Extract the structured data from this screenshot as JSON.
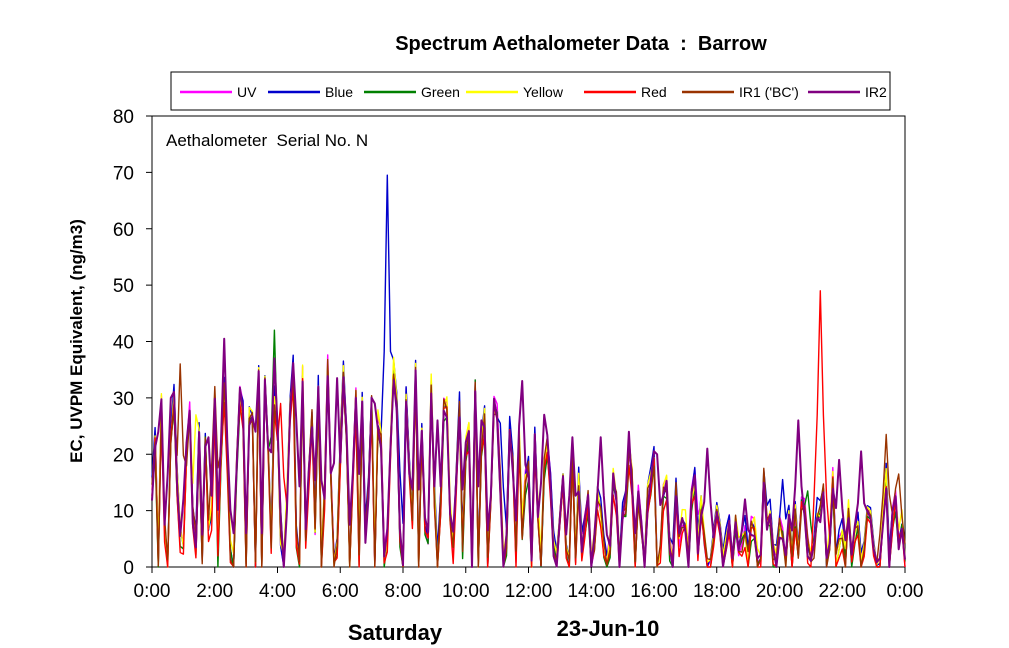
{
  "chart_data": {
    "type": "line",
    "title": "Spectrum Aethalometer Data  :  Barrow",
    "annotation": "Aethalometer  Serial No. N",
    "ylabel": "EC, UVPM Equivalent, (ng/m3)",
    "day_label": "Saturday",
    "date_label": "23-Jun-10",
    "ylim": [
      0,
      80
    ],
    "y_ticks": [
      "0",
      "10",
      "20",
      "30",
      "40",
      "50",
      "60",
      "70",
      "80"
    ],
    "x_range_hours": [
      0,
      24
    ],
    "x_ticks": [
      "0:00",
      "2:00",
      "4:00",
      "6:00",
      "8:00",
      "10:00",
      "12:00",
      "14:00",
      "16:00",
      "18:00",
      "20:00",
      "22:00",
      "0:00"
    ],
    "legend_position": "top",
    "grid": false,
    "series": [
      {
        "name": "UV",
        "color": "#ff00ff"
      },
      {
        "name": "Blue",
        "color": "#0000cc"
      },
      {
        "name": "Green",
        "color": "#008000"
      },
      {
        "name": "Yellow",
        "color": "#ffff00"
      },
      {
        "name": "Red",
        "color": "#ff0000"
      },
      {
        "name": "IR1 ('BC')",
        "color": "#993300"
      },
      {
        "name": "IR2",
        "color": "#800080"
      }
    ],
    "peaks": [
      {
        "series": "IR2",
        "x": 0.2,
        "y": 24
      },
      {
        "series": "IR2",
        "x": 0.55,
        "y": 30
      },
      {
        "series": "IR1 ('BC')",
        "x": 0.85,
        "y": 36
      },
      {
        "series": "IR2",
        "x": 1.05,
        "y": 22
      },
      {
        "series": "Yellow",
        "x": 1.45,
        "y": 27
      },
      {
        "series": "IR2",
        "x": 1.75,
        "y": 23
      },
      {
        "series": "IR1 ('BC')",
        "x": 2.0,
        "y": 32
      },
      {
        "series": "IR2",
        "x": 2.25,
        "y": 40.5
      },
      {
        "series": "IR2",
        "x": 2.75,
        "y": 24
      },
      {
        "series": "IR2",
        "x": 3.3,
        "y": 24
      },
      {
        "series": "Green",
        "x": 3.85,
        "y": 42
      },
      {
        "series": "IR2",
        "x": 3.85,
        "y": 37
      },
      {
        "series": "Red",
        "x": 4.1,
        "y": 29
      },
      {
        "series": "IR2",
        "x": 4.6,
        "y": 26
      },
      {
        "series": "IR2",
        "x": 5.3,
        "y": 28
      },
      {
        "series": "IR2",
        "x": 5.9,
        "y": 33.5
      },
      {
        "series": "IR2",
        "x": 6.5,
        "y": 30
      },
      {
        "series": "IR2",
        "x": 7.05,
        "y": 29
      },
      {
        "series": "Blue",
        "x": 7.45,
        "y": 69.5
      },
      {
        "series": "Blue",
        "x": 7.8,
        "y": 31
      },
      {
        "series": "IR2",
        "x": 8.4,
        "y": 25
      },
      {
        "series": "IR2",
        "x": 9.1,
        "y": 26
      },
      {
        "series": "IR2",
        "x": 9.8,
        "y": 25
      },
      {
        "series": "IR2",
        "x": 10.5,
        "y": 26
      },
      {
        "series": "Blue",
        "x": 11.05,
        "y": 25.5
      },
      {
        "series": "IR2",
        "x": 11.75,
        "y": 33
      },
      {
        "series": "IR2",
        "x": 12.5,
        "y": 27
      },
      {
        "series": "IR2",
        "x": 13.4,
        "y": 23
      },
      {
        "series": "IR2",
        "x": 14.3,
        "y": 23
      },
      {
        "series": "IR2",
        "x": 15.2,
        "y": 24
      },
      {
        "series": "IR2",
        "x": 16.05,
        "y": 20
      },
      {
        "series": "UV",
        "x": 17.3,
        "y": 17
      },
      {
        "series": "IR2",
        "x": 17.7,
        "y": 21
      },
      {
        "series": "IR2",
        "x": 18.9,
        "y": 12
      },
      {
        "series": "Blue",
        "x": 20.1,
        "y": 15.5
      },
      {
        "series": "IR2",
        "x": 20.6,
        "y": 26
      },
      {
        "series": "Green",
        "x": 20.95,
        "y": 13.5
      },
      {
        "series": "Red",
        "x": 21.25,
        "y": 49
      },
      {
        "series": "Red",
        "x": 21.4,
        "y": 21.5
      },
      {
        "series": "IR2",
        "x": 21.85,
        "y": 19
      },
      {
        "series": "IR2",
        "x": 22.65,
        "y": 20.5
      },
      {
        "series": "IR1 ('BC')",
        "x": 23.35,
        "y": 23.5
      },
      {
        "series": "IR1 ('BC')",
        "x": 23.8,
        "y": 16.5
      }
    ]
  }
}
